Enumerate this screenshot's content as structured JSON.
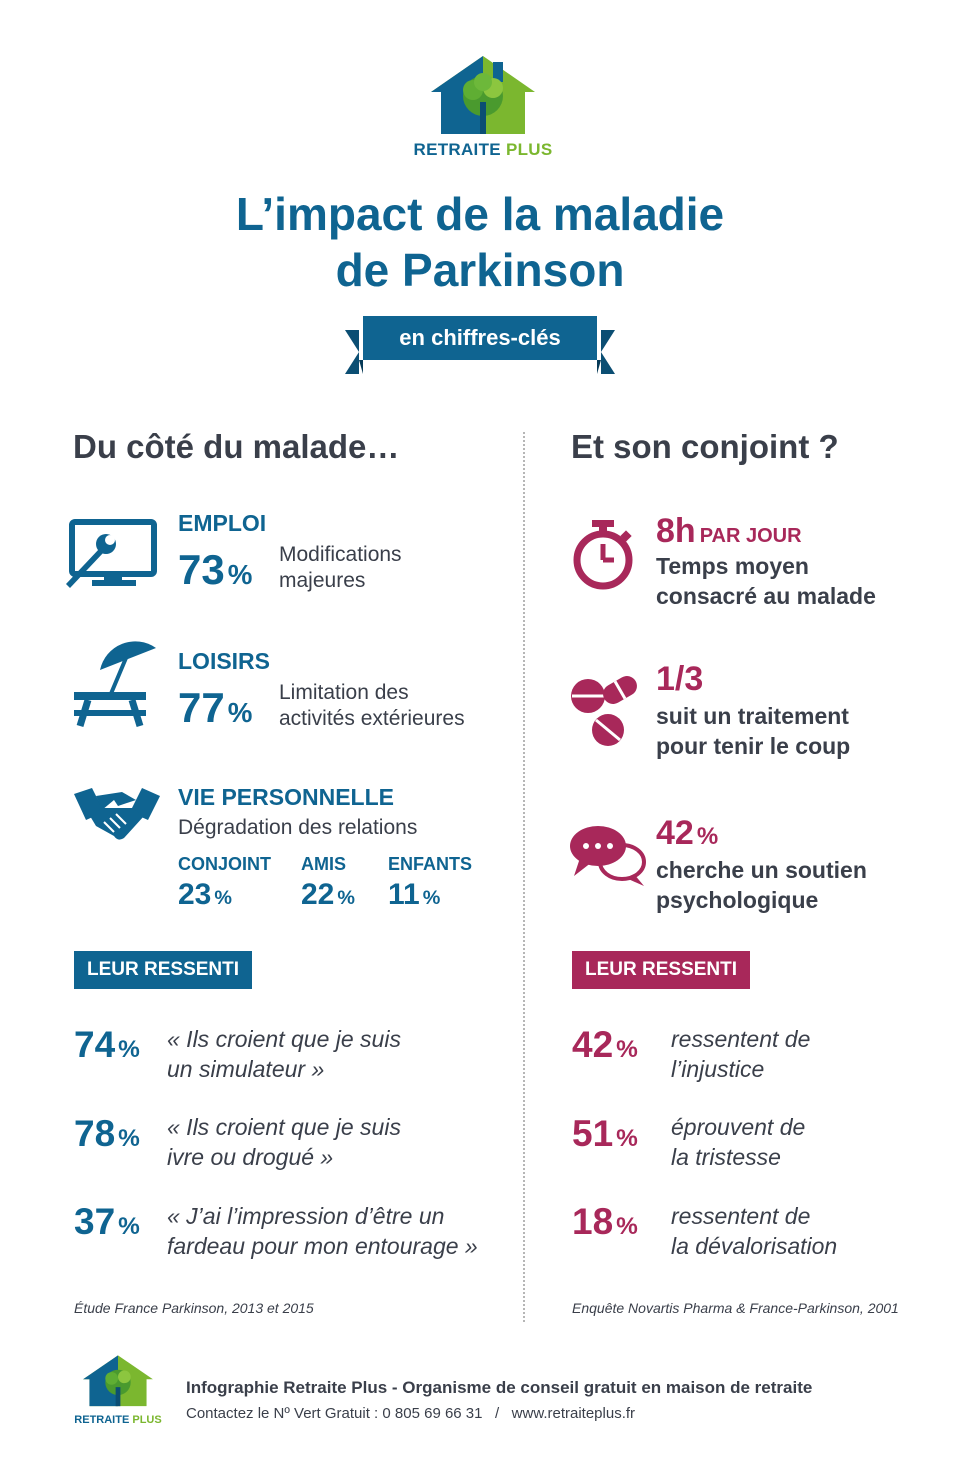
{
  "brand": {
    "part1": "RETRAITE",
    "part2": "PLUS"
  },
  "title": {
    "line1": "L’impact de la maladie",
    "line2": "de Parkinson"
  },
  "ribbon": "en chiffres-clés",
  "left": {
    "heading": "Du côté du malade…",
    "emploi": {
      "label": "EMPLOI",
      "value": "73",
      "pct": "%",
      "desc1": "Modifications",
      "desc2": "majeures"
    },
    "loisirs": {
      "label": "LOISIRS",
      "value": "77",
      "pct": "%",
      "desc1": "Limitation des",
      "desc2": "activités extérieures"
    },
    "vie": {
      "label": "VIE PERSONNELLE",
      "desc": "Dégradation des relations",
      "items": [
        {
          "label": "CONJOINT",
          "value": "23",
          "pct": "%"
        },
        {
          "label": "AMIS",
          "value": "22",
          "pct": "%"
        },
        {
          "label": "ENFANTS",
          "value": "11",
          "pct": "%"
        }
      ]
    },
    "badge": "LEUR RESSENTI",
    "feelings": [
      {
        "value": "74",
        "pct": "%",
        "line1": "« Ils croient que je suis",
        "line2": "un simulateur »"
      },
      {
        "value": "78",
        "pct": "%",
        "line1": "« Ils croient que je suis",
        "line2": "ivre ou drogué »"
      },
      {
        "value": "37",
        "pct": "%",
        "line1": "« J’ai l’impression d’être un",
        "line2": "fardeau pour mon entourage »"
      }
    ],
    "source": "Étude France Parkinson, 2013 et 2015"
  },
  "right": {
    "heading": "Et son conjoint ?",
    "time": {
      "value": "8h",
      "unit": "PAR JOUR",
      "desc1": "Temps moyen",
      "desc2": "consacré au malade"
    },
    "treatment": {
      "value": "1/3",
      "desc1": "suit un traitement",
      "desc2": "pour tenir le coup"
    },
    "support": {
      "value": "42",
      "pct": "%",
      "desc1": "cherche un soutien",
      "desc2": "psychologique"
    },
    "badge": "LEUR RESSENTI",
    "feelings": [
      {
        "value": "42",
        "pct": "%",
        "line1": "ressentent de",
        "line2": "l’injustice"
      },
      {
        "value": "51",
        "pct": "%",
        "line1": "éprouvent de",
        "line2": "la tristesse"
      },
      {
        "value": "18",
        "pct": "%",
        "line1": "ressentent de",
        "line2": "la dévalorisation"
      }
    ],
    "source": "Enquête Novartis Pharma & France-Parkinson, 2001"
  },
  "footer": {
    "line1": "Infographie Retraite Plus - Organisme de conseil gratuit en maison de retraite",
    "line2": "Contactez le Nº Vert Gratuit : 0 805 69 66 31   /   www.retraiteplus.fr"
  },
  "colors": {
    "blue": "#0f6491",
    "green": "#7bb72f",
    "crimson": "#a8285a",
    "text": "#3a3f4a"
  },
  "icons": [
    "house-tree-logo",
    "computer-wrench-icon",
    "picnic-umbrella-icon",
    "handshake-icon",
    "stopwatch-icon",
    "pills-icon",
    "speech-bubbles-icon"
  ]
}
